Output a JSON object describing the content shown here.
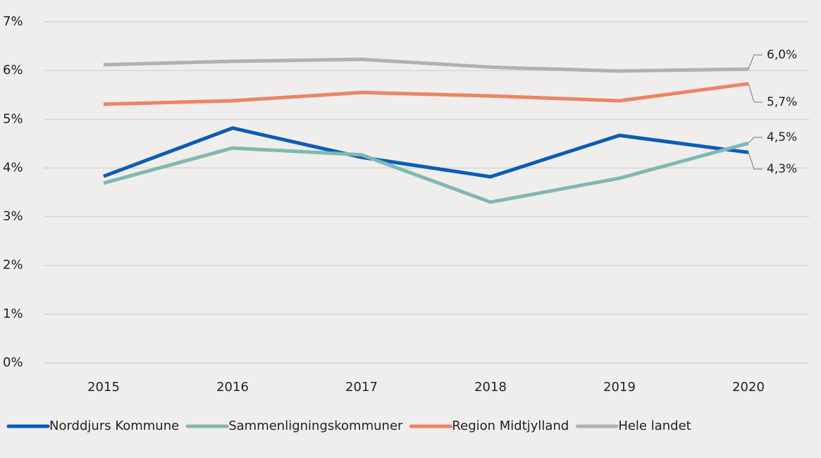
{
  "chart_data": {
    "type": "line",
    "categories": [
      "2015",
      "2016",
      "2017",
      "2018",
      "2019",
      "2020"
    ],
    "series": [
      {
        "name": "Norddjurs Kommune",
        "color": "#0a5cb8",
        "values": [
          3.83,
          4.82,
          4.22,
          3.82,
          4.67,
          4.32
        ],
        "value_labels": [
          null,
          null,
          null,
          null,
          null,
          "4,3%"
        ]
      },
      {
        "name": "Sammenligningskommuner",
        "color": "#7fb8b2",
        "values": [
          3.69,
          4.41,
          4.27,
          3.3,
          3.79,
          4.51
        ],
        "value_labels": [
          null,
          null,
          null,
          null,
          null,
          "4,5%"
        ]
      },
      {
        "name": "Region Midtjylland",
        "color": "#ec8463",
        "values": [
          5.31,
          5.38,
          5.55,
          5.48,
          5.38,
          5.73
        ],
        "value_labels": [
          null,
          null,
          null,
          null,
          null,
          "5,7%"
        ]
      },
      {
        "name": "Hele landet",
        "color": "#b3b1ae",
        "values": [
          6.12,
          6.19,
          6.23,
          6.07,
          5.99,
          6.03
        ],
        "value_labels": [
          null,
          null,
          null,
          null,
          null,
          "6,0%"
        ]
      }
    ],
    "ylim": [
      0,
      7
    ],
    "yticks": [
      {
        "value": 0,
        "label": "0%"
      },
      {
        "value": 1,
        "label": "1%"
      },
      {
        "value": 2,
        "label": "2%"
      },
      {
        "value": 3,
        "label": "3%"
      },
      {
        "value": 4,
        "label": "4%"
      },
      {
        "value": 5,
        "label": "5%"
      },
      {
        "value": 6,
        "label": "6%"
      },
      {
        "value": 7,
        "label": "7%"
      }
    ],
    "grid": true,
    "legend": "bottom"
  }
}
